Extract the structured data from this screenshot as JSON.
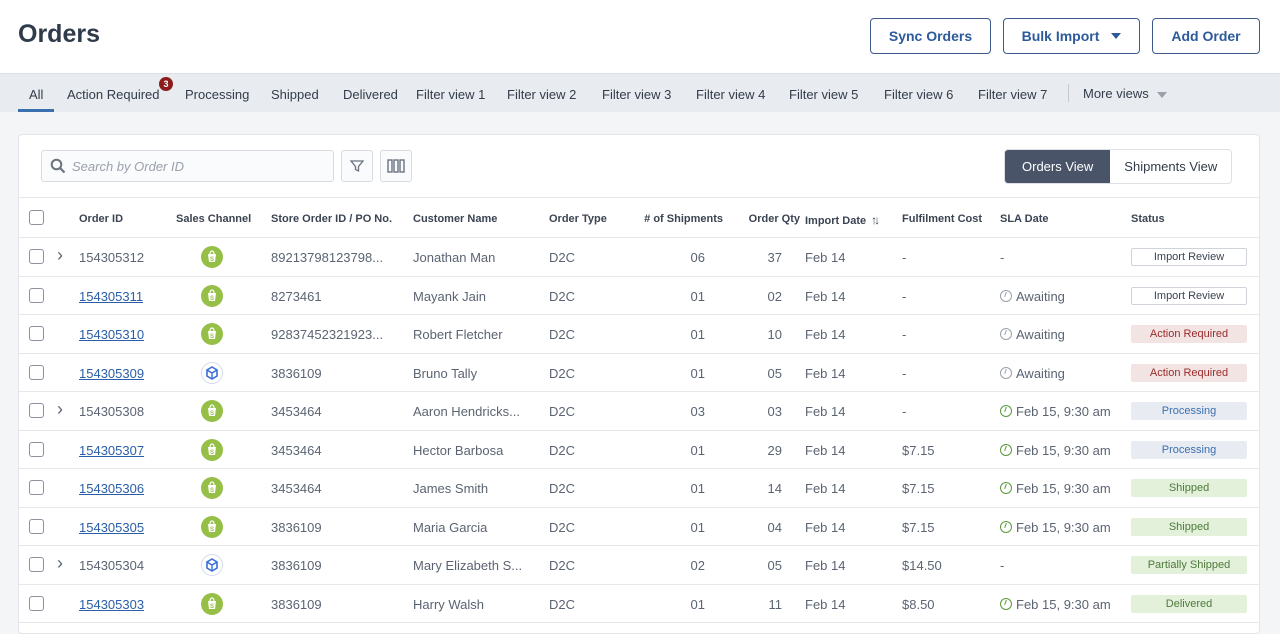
{
  "header": {
    "title": "Orders",
    "sync_label": "Sync Orders",
    "bulk_label": "Bulk Import",
    "add_label": "Add Order"
  },
  "tabs": [
    {
      "label": "All"
    },
    {
      "label": "Action Required",
      "badge": "3"
    },
    {
      "label": "Processing"
    },
    {
      "label": "Shipped"
    },
    {
      "label": "Delivered"
    },
    {
      "label": "Filter view 1"
    },
    {
      "label": "Filter view 2"
    },
    {
      "label": "Filter view 3"
    },
    {
      "label": "Filter view 4"
    },
    {
      "label": "Filter view 5"
    },
    {
      "label": "Filter view 6"
    },
    {
      "label": "Filter view 7"
    }
  ],
  "more_views": "More views",
  "toolbar": {
    "search_placeholder": "Search by Order ID",
    "view_toggle": [
      "Orders View",
      "Shipments View"
    ],
    "active_view": "Orders View"
  },
  "columns": [
    "Order ID",
    "Sales Channel",
    "Store Order ID / PO No.",
    "Customer Name",
    "Order Type",
    "# of Shipments",
    "Order Qty",
    "Import Date",
    "Fulfilment Cost",
    "SLA Date",
    "Status"
  ],
  "status_colors": {
    "Import Review": {
      "bg": "#ffffff",
      "fg": "#3b4452",
      "border": "#cfd4da"
    },
    "Action Required": {
      "bg": "#f3e4e4",
      "fg": "#9a2a2a"
    },
    "Processing": {
      "bg": "#e8ecf2",
      "fg": "#3a6fb0"
    },
    "Shipped": {
      "bg": "#e3f0da",
      "fg": "#4d7a3a"
    },
    "Partially Shipped": {
      "bg": "#e3f0da",
      "fg": "#4d7a3a"
    },
    "Delivered": {
      "bg": "#e3f0da",
      "fg": "#4d7a3a"
    }
  },
  "rows": [
    {
      "id": "154305312",
      "link": false,
      "expand": true,
      "channel": "shopify",
      "store_id": "89213798123798...",
      "customer": "Jonathan Man",
      "type": "D2C",
      "shipments": "06",
      "qty": "37",
      "import": "Feb 14",
      "cost": "-",
      "sla": "-",
      "sla_icon": "none",
      "status": "Import Review"
    },
    {
      "id": "154305311",
      "link": true,
      "expand": false,
      "channel": "shopify",
      "store_id": "8273461",
      "customer": "Mayank Jain",
      "type": "D2C",
      "shipments": "01",
      "qty": "02",
      "import": "Feb 14",
      "cost": "-",
      "sla": "Awaiting",
      "sla_icon": "gray",
      "status": "Import Review"
    },
    {
      "id": "154305310",
      "link": true,
      "expand": false,
      "channel": "shopify",
      "store_id": "92837452321923...",
      "customer": "Robert Fletcher",
      "type": "D2C",
      "shipments": "01",
      "qty": "10",
      "import": "Feb 14",
      "cost": "-",
      "sla": "Awaiting",
      "sla_icon": "gray",
      "status": "Action Required"
    },
    {
      "id": "154305309",
      "link": true,
      "expand": false,
      "channel": "box",
      "store_id": "3836109",
      "customer": "Bruno Tally",
      "type": "D2C",
      "shipments": "01",
      "qty": "05",
      "import": "Feb 14",
      "cost": "-",
      "sla": "Awaiting",
      "sla_icon": "gray",
      "status": "Action Required"
    },
    {
      "id": "154305308",
      "link": false,
      "expand": true,
      "channel": "shopify",
      "store_id": "3453464",
      "customer": "Aaron Hendricks...",
      "type": "D2C",
      "shipments": "03",
      "qty": "03",
      "import": "Feb 14",
      "cost": "-",
      "sla": "Feb 15, 9:30 am",
      "sla_icon": "green",
      "status": "Processing"
    },
    {
      "id": "154305307",
      "link": true,
      "expand": false,
      "channel": "shopify",
      "store_id": "3453464",
      "customer": "Hector Barbosa",
      "type": "D2C",
      "shipments": "01",
      "qty": "29",
      "import": "Feb 14",
      "cost": "$7.15",
      "sla": "Feb 15, 9:30 am",
      "sla_icon": "green",
      "status": "Processing"
    },
    {
      "id": "154305306",
      "link": true,
      "expand": false,
      "channel": "shopify",
      "store_id": "3453464",
      "customer": "James Smith",
      "type": "D2C",
      "shipments": "01",
      "qty": "14",
      "import": "Feb 14",
      "cost": "$7.15",
      "sla": "Feb 15, 9:30 am",
      "sla_icon": "green",
      "status": "Shipped"
    },
    {
      "id": "154305305",
      "link": true,
      "expand": false,
      "channel": "shopify",
      "store_id": "3836109",
      "customer": "Maria Garcia",
      "type": "D2C",
      "shipments": "01",
      "qty": "04",
      "import": "Feb 14",
      "cost": "$7.15",
      "sla": "Feb 15, 9:30 am",
      "sla_icon": "green",
      "status": "Shipped"
    },
    {
      "id": "154305304",
      "link": false,
      "expand": true,
      "channel": "box",
      "store_id": "3836109",
      "customer": "Mary Elizabeth S...",
      "type": "D2C",
      "shipments": "02",
      "qty": "05",
      "import": "Feb 14",
      "cost": "$14.50",
      "sla": "-",
      "sla_icon": "none",
      "status": "Partially Shipped"
    },
    {
      "id": "154305303",
      "link": true,
      "expand": false,
      "channel": "shopify",
      "store_id": "3836109",
      "customer": "Harry Walsh",
      "type": "D2C",
      "shipments": "01",
      "qty": "11",
      "import": "Feb 14",
      "cost": "$8.50",
      "sla": "Feb 15, 9:30 am",
      "sla_icon": "green",
      "status": "Delivered"
    }
  ]
}
